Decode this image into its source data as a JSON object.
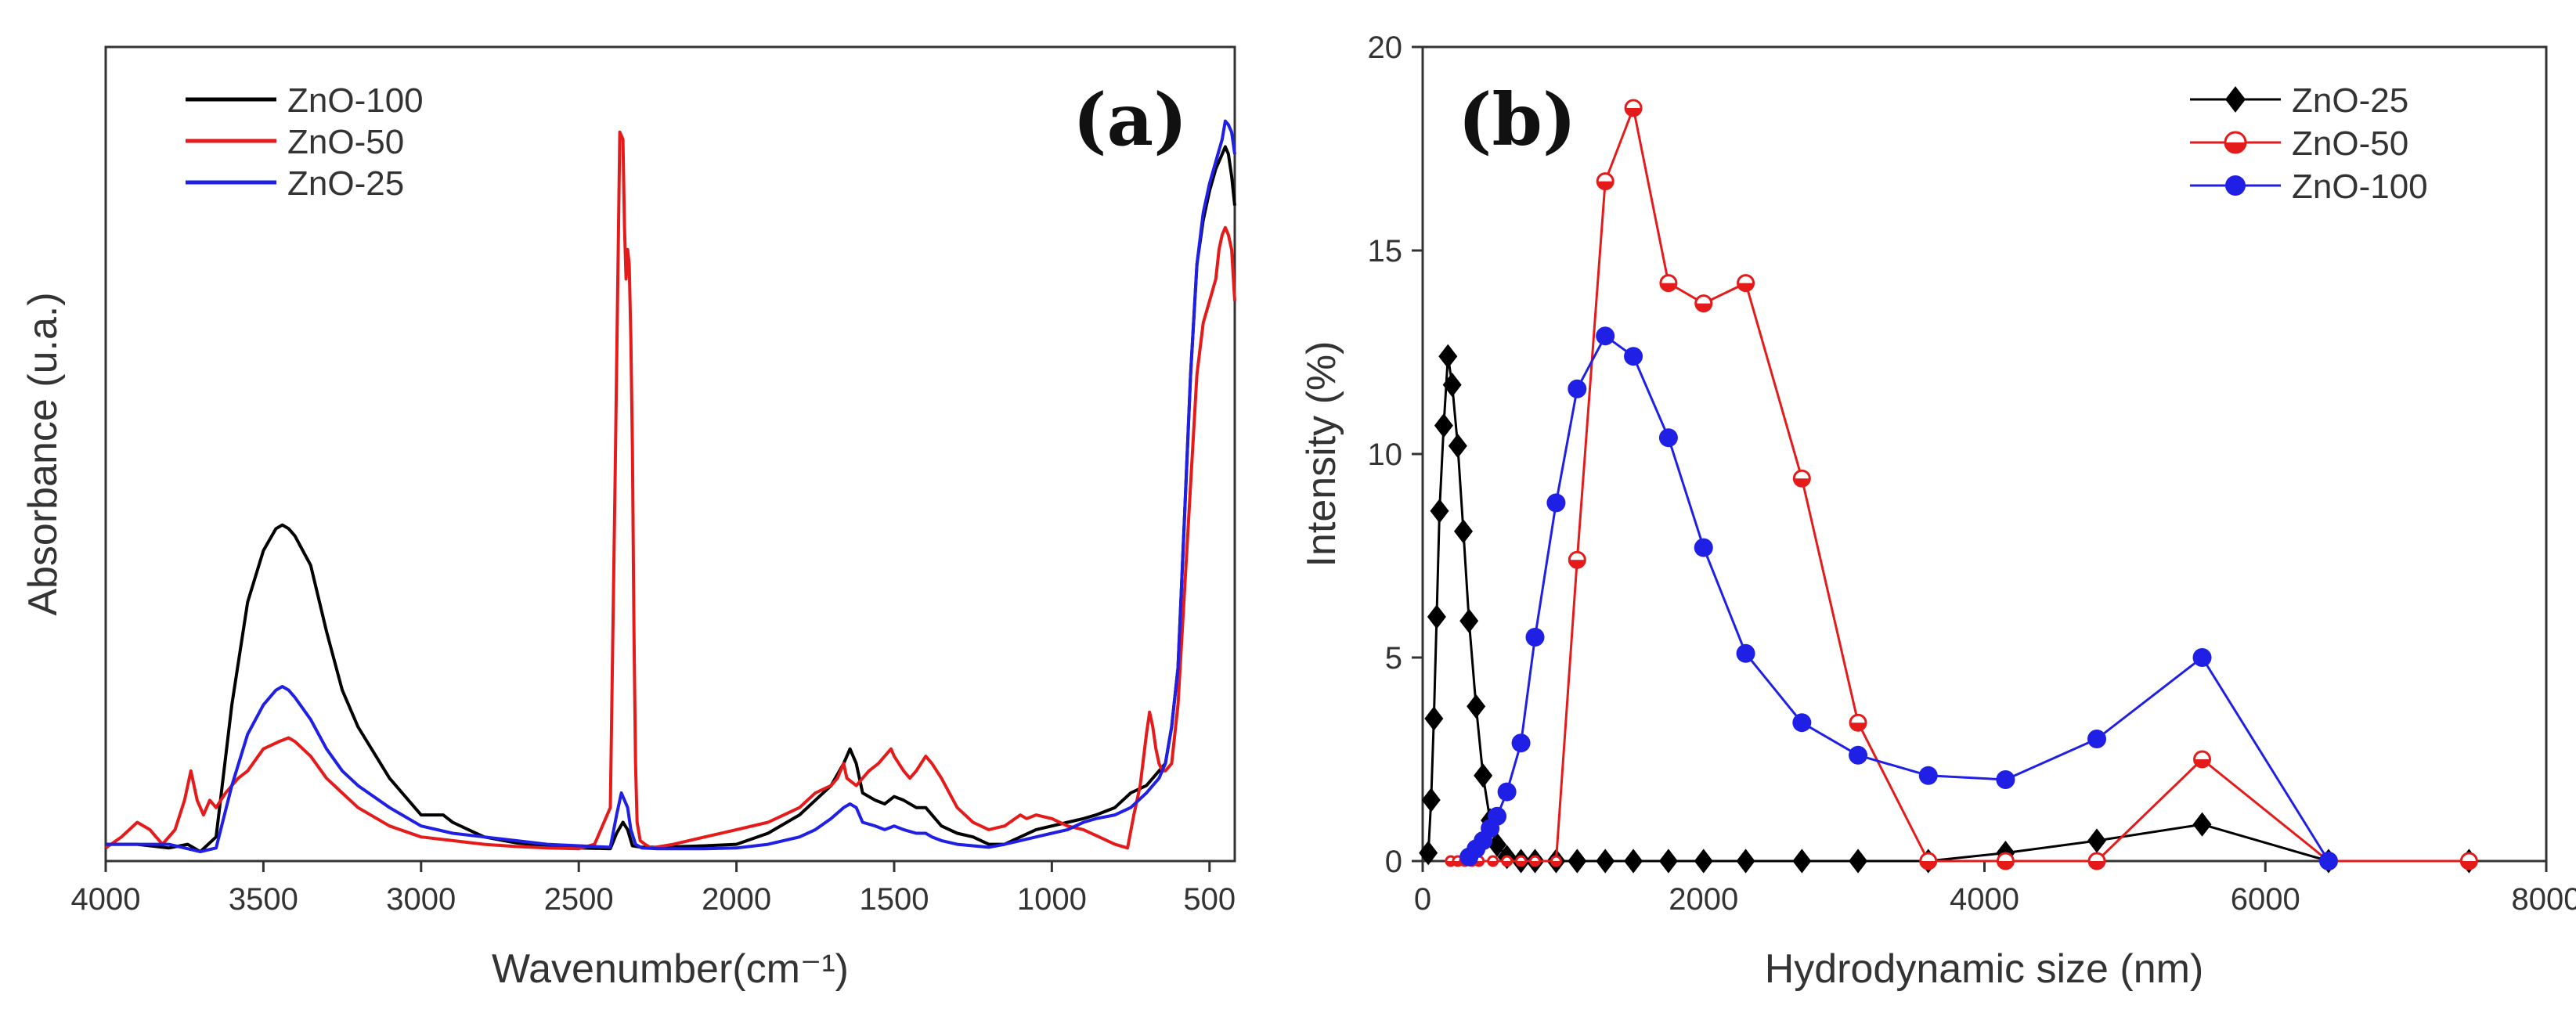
{
  "colors": {
    "black": "#000000",
    "red": "#e51a1a",
    "blue": "#1f1fe6",
    "axis": "#333333"
  },
  "chart_data": [
    {
      "id": "a",
      "panel_label": "(a)",
      "type": "line",
      "xlabel": "Wavenumber(cm⁻¹)",
      "ylabel": "Absorbance (u.a.)",
      "xlim": [
        4000,
        420
      ],
      "x_reversed": true,
      "ylim": [
        0,
        1
      ],
      "xticks": [
        4000,
        3500,
        3000,
        2500,
        2000,
        1500,
        1000,
        500
      ],
      "xtick_labels": [
        "4000",
        "3500",
        "3000",
        "2500",
        "2000",
        "1500",
        "1000",
        "500"
      ],
      "legend_position": "top-left",
      "series": [
        {
          "name": "ZnO-100",
          "color": "#000000",
          "x": [
            4000,
            3900,
            3800,
            3740,
            3700,
            3650,
            3600,
            3550,
            3500,
            3460,
            3440,
            3420,
            3400,
            3350,
            3300,
            3250,
            3200,
            3100,
            3000,
            2930,
            2900,
            2850,
            2800,
            2700,
            2600,
            2500,
            2400,
            2380,
            2360,
            2345,
            2330,
            2300,
            2250,
            2100,
            2000,
            1900,
            1800,
            1750,
            1700,
            1660,
            1640,
            1620,
            1600,
            1560,
            1530,
            1500,
            1470,
            1430,
            1400,
            1380,
            1350,
            1300,
            1250,
            1200,
            1150,
            1100,
            1050,
            1000,
            950,
            900,
            860,
            800,
            750,
            700,
            660,
            640,
            620,
            600,
            580,
            560,
            540,
            520,
            500,
            480,
            460,
            450,
            440,
            430,
            420
          ],
          "y": [
            0.01,
            0.01,
            0.005,
            0.01,
            0.0,
            0.02,
            0.2,
            0.34,
            0.41,
            0.44,
            0.445,
            0.44,
            0.43,
            0.39,
            0.3,
            0.22,
            0.17,
            0.1,
            0.05,
            0.05,
            0.04,
            0.03,
            0.02,
            0.012,
            0.008,
            0.005,
            0.004,
            0.025,
            0.04,
            0.03,
            0.008,
            0.006,
            0.006,
            0.008,
            0.01,
            0.025,
            0.05,
            0.07,
            0.09,
            0.12,
            0.14,
            0.12,
            0.08,
            0.07,
            0.065,
            0.075,
            0.07,
            0.06,
            0.06,
            0.05,
            0.035,
            0.025,
            0.02,
            0.01,
            0.01,
            0.02,
            0.03,
            0.035,
            0.04,
            0.045,
            0.05,
            0.06,
            0.08,
            0.09,
            0.11,
            0.12,
            0.17,
            0.25,
            0.45,
            0.65,
            0.8,
            0.86,
            0.9,
            0.93,
            0.95,
            0.96,
            0.95,
            0.92,
            0.88
          ]
        },
        {
          "name": "ZnO-50",
          "color": "#e51a1a",
          "x": [
            4000,
            3950,
            3900,
            3860,
            3820,
            3780,
            3750,
            3730,
            3710,
            3690,
            3670,
            3650,
            3620,
            3580,
            3550,
            3500,
            3450,
            3420,
            3400,
            3350,
            3300,
            3250,
            3200,
            3100,
            3000,
            2900,
            2800,
            2700,
            2600,
            2500,
            2450,
            2400,
            2385,
            2370,
            2360,
            2355,
            2350,
            2345,
            2340,
            2335,
            2330,
            2325,
            2320,
            2315,
            2305,
            2290,
            2270,
            2200,
            2100,
            2000,
            1900,
            1800,
            1750,
            1700,
            1680,
            1660,
            1650,
            1620,
            1580,
            1550,
            1530,
            1510,
            1500,
            1470,
            1450,
            1430,
            1400,
            1380,
            1350,
            1300,
            1250,
            1200,
            1150,
            1100,
            1080,
            1050,
            1000,
            950,
            900,
            850,
            800,
            760,
            740,
            720,
            700,
            690,
            680,
            670,
            660,
            650,
            640,
            620,
            600,
            580,
            560,
            540,
            520,
            500,
            480,
            470,
            460,
            450,
            440,
            430,
            420
          ],
          "y": [
            0.005,
            0.02,
            0.04,
            0.03,
            0.01,
            0.03,
            0.07,
            0.11,
            0.07,
            0.05,
            0.07,
            0.06,
            0.08,
            0.1,
            0.11,
            0.14,
            0.15,
            0.155,
            0.15,
            0.13,
            0.1,
            0.08,
            0.06,
            0.035,
            0.02,
            0.015,
            0.01,
            0.007,
            0.005,
            0.004,
            0.01,
            0.06,
            0.5,
            0.98,
            0.97,
            0.85,
            0.78,
            0.82,
            0.8,
            0.7,
            0.55,
            0.3,
            0.12,
            0.04,
            0.015,
            0.01,
            0.005,
            0.01,
            0.02,
            0.03,
            0.04,
            0.06,
            0.08,
            0.09,
            0.1,
            0.12,
            0.1,
            0.09,
            0.11,
            0.12,
            0.13,
            0.14,
            0.13,
            0.11,
            0.1,
            0.11,
            0.13,
            0.12,
            0.1,
            0.06,
            0.04,
            0.03,
            0.035,
            0.05,
            0.045,
            0.05,
            0.045,
            0.035,
            0.03,
            0.02,
            0.01,
            0.005,
            0.05,
            0.09,
            0.16,
            0.19,
            0.17,
            0.14,
            0.12,
            0.11,
            0.11,
            0.12,
            0.2,
            0.35,
            0.5,
            0.65,
            0.72,
            0.75,
            0.78,
            0.82,
            0.84,
            0.85,
            0.84,
            0.82,
            0.75
          ]
        },
        {
          "name": "ZnO-25",
          "color": "#1f1fe6",
          "x": [
            4000,
            3900,
            3800,
            3700,
            3650,
            3600,
            3550,
            3500,
            3460,
            3440,
            3420,
            3400,
            3350,
            3300,
            3250,
            3200,
            3100,
            3000,
            2900,
            2800,
            2700,
            2600,
            2500,
            2400,
            2380,
            2365,
            2355,
            2345,
            2335,
            2320,
            2300,
            2250,
            2100,
            2000,
            1900,
            1800,
            1750,
            1700,
            1660,
            1640,
            1620,
            1600,
            1560,
            1530,
            1500,
            1470,
            1430,
            1400,
            1380,
            1350,
            1300,
            1250,
            1200,
            1150,
            1100,
            1050,
            1000,
            950,
            900,
            860,
            800,
            750,
            700,
            660,
            640,
            620,
            600,
            580,
            560,
            540,
            520,
            500,
            480,
            460,
            450,
            440,
            430,
            420
          ],
          "y": [
            0.01,
            0.01,
            0.01,
            0.0,
            0.005,
            0.09,
            0.16,
            0.2,
            0.22,
            0.225,
            0.22,
            0.21,
            0.18,
            0.14,
            0.11,
            0.09,
            0.06,
            0.035,
            0.025,
            0.02,
            0.015,
            0.01,
            0.008,
            0.006,
            0.05,
            0.08,
            0.07,
            0.06,
            0.03,
            0.01,
            0.005,
            0.004,
            0.004,
            0.005,
            0.01,
            0.02,
            0.03,
            0.045,
            0.06,
            0.065,
            0.06,
            0.04,
            0.035,
            0.03,
            0.035,
            0.03,
            0.025,
            0.025,
            0.02,
            0.015,
            0.01,
            0.008,
            0.006,
            0.01,
            0.015,
            0.02,
            0.025,
            0.03,
            0.04,
            0.045,
            0.05,
            0.06,
            0.08,
            0.1,
            0.12,
            0.17,
            0.25,
            0.45,
            0.65,
            0.8,
            0.87,
            0.91,
            0.94,
            0.97,
            0.995,
            0.99,
            0.98,
            0.95
          ]
        }
      ]
    },
    {
      "id": "b",
      "panel_label": "(b)",
      "type": "line",
      "xlabel": "Hydrodynamic size (nm)",
      "ylabel": "Intensity (%)",
      "xlim": [
        0,
        8000
      ],
      "ylim": [
        0,
        20
      ],
      "xticks": [
        0,
        2000,
        4000,
        6000,
        8000
      ],
      "xtick_labels": [
        "0",
        "2000",
        "4000",
        "6000",
        "8000"
      ],
      "yticks": [
        0,
        5,
        10,
        15,
        20
      ],
      "ytick_labels": [
        "0",
        "5",
        "10",
        "15",
        "20"
      ],
      "legend_position": "top-right",
      "series": [
        {
          "name": "ZnO-25",
          "color": "#000000",
          "marker": "diamond",
          "x": [
            40,
            60,
            80,
            100,
            120,
            150,
            180,
            210,
            250,
            290,
            330,
            380,
            430,
            480,
            530,
            600,
            700,
            800,
            950,
            1100,
            1300,
            1500,
            1750,
            2000,
            2300,
            2700,
            3100,
            3600,
            4150,
            4800,
            5550,
            6450,
            7450
          ],
          "y": [
            0.2,
            1.5,
            3.5,
            6.0,
            8.6,
            10.7,
            12.4,
            11.7,
            10.2,
            8.1,
            5.9,
            3.8,
            2.1,
            1.0,
            0.4,
            0.1,
            0.0,
            0.0,
            0.0,
            0.0,
            0.0,
            0.0,
            0.0,
            0.0,
            0.0,
            0.0,
            0.0,
            0.0,
            0.2,
            0.5,
            0.9,
            0.0,
            0.0
          ]
        },
        {
          "name": "ZnO-50",
          "color": "#e51a1a",
          "marker": "circle-half",
          "x": [
            200,
            250,
            300,
            350,
            400,
            500,
            600,
            700,
            800,
            950,
            1100,
            1300,
            1500,
            1750,
            2000,
            2300,
            2700,
            3100,
            3600,
            4150,
            4800,
            5550,
            6450,
            7450
          ],
          "y": [
            0.0,
            0.0,
            0.0,
            0.0,
            0.0,
            0.0,
            0.0,
            0.0,
            0.0,
            0.0,
            7.4,
            16.7,
            18.5,
            14.2,
            13.7,
            14.2,
            9.4,
            3.4,
            0.0,
            0.0,
            0.0,
            2.5,
            0.0,
            0.0
          ]
        },
        {
          "name": "ZnO-100",
          "color": "#1f1fe6",
          "marker": "circle",
          "x": [
            330,
            380,
            430,
            480,
            530,
            600,
            700,
            800,
            950,
            1100,
            1300,
            1500,
            1750,
            2000,
            2300,
            2700,
            3100,
            3600,
            4150,
            4800,
            5550,
            6450
          ],
          "y": [
            0.1,
            0.3,
            0.5,
            0.8,
            1.1,
            1.7,
            2.9,
            5.5,
            8.8,
            11.6,
            12.9,
            12.4,
            10.4,
            7.7,
            5.1,
            3.4,
            2.6,
            2.1,
            2.0,
            3.0,
            5.0,
            0.0
          ]
        }
      ]
    }
  ]
}
